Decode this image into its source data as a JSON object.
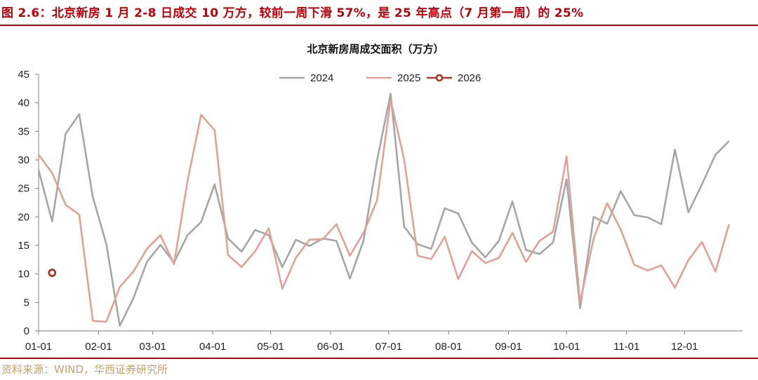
{
  "header": {
    "caption": "图 2.6：北京新房 1 月 2-8 日成交 10 万方，较前一周下滑 57%，是 25 年高点（7 月第一周）的 25%"
  },
  "footer": {
    "source": "资料来源：WIND，华西证券研究所"
  },
  "colors": {
    "accent": "#c0000b",
    "source_text": "#c8a16a",
    "series_2024": "#a6a6a6",
    "series_2025": "#e0a197",
    "series_2026": "#a8382a"
  },
  "chart_data": {
    "type": "line",
    "title": "北京新房周成交面积（万方）",
    "xlabel": "",
    "ylabel": "",
    "ylim": [
      0,
      45
    ],
    "yticks": [
      0,
      5,
      10,
      15,
      20,
      25,
      30,
      35,
      40,
      45
    ],
    "xlim": [
      1,
      53
    ],
    "xticks": [
      {
        "label": "01-01",
        "week": 1
      },
      {
        "label": "02-01",
        "week": 5.43
      },
      {
        "label": "03-01",
        "week": 9.43
      },
      {
        "label": "04-01",
        "week": 13.86
      },
      {
        "label": "05-01",
        "week": 18.14
      },
      {
        "label": "06-01",
        "week": 22.57
      },
      {
        "label": "07-01",
        "week": 26.86
      },
      {
        "label": "08-01",
        "week": 31.29
      },
      {
        "label": "09-01",
        "week": 35.71
      },
      {
        "label": "10-01",
        "week": 40
      },
      {
        "label": "11-01",
        "week": 44.43
      },
      {
        "label": "12-01",
        "week": 48.71
      }
    ],
    "grid": false,
    "legend_position": "top-center",
    "series": [
      {
        "name": "2024",
        "x": [
          1,
          2,
          3,
          4,
          5,
          6,
          7,
          8,
          9,
          10,
          11,
          12,
          13,
          14,
          15,
          16,
          17,
          18,
          19,
          20,
          21,
          22,
          23,
          24,
          25,
          26,
          27,
          28,
          29,
          30,
          31,
          32,
          33,
          34,
          35,
          36,
          37,
          38,
          39,
          40,
          41,
          42,
          43,
          44,
          45,
          46,
          47,
          48,
          49,
          50,
          51,
          52
        ],
        "values": [
          28.2,
          19.2,
          34.6,
          38.0,
          23.5,
          15.3,
          0.9,
          5.7,
          12.1,
          15.1,
          12.0,
          16.8,
          19.1,
          25.7,
          16.2,
          13.9,
          17.7,
          16.8,
          11.2,
          16.0,
          14.9,
          16.2,
          15.8,
          9.2,
          15.8,
          29.9,
          41.6,
          18.3,
          15.2,
          14.4,
          21.5,
          20.6,
          15.5,
          12.9,
          15.8,
          22.7,
          14.2,
          13.5,
          15.5,
          26.6,
          4.0,
          20.0,
          18.8,
          24.5,
          20.3,
          19.9,
          18.7,
          31.8,
          20.8,
          25.7,
          30.9,
          33.3
        ]
      },
      {
        "name": "2025",
        "x": [
          1,
          2,
          3,
          4,
          5,
          6,
          7,
          8,
          9,
          10,
          11,
          12,
          13,
          14,
          15,
          16,
          17,
          18,
          19,
          20,
          21,
          22,
          23,
          24,
          25,
          26,
          27,
          28,
          29,
          30,
          31,
          32,
          33,
          34,
          35,
          36,
          37,
          38,
          39,
          40,
          41,
          42,
          43,
          44,
          45,
          46,
          47,
          48,
          49,
          50,
          51,
          52
        ],
        "values": [
          30.9,
          27.7,
          22.1,
          20.4,
          1.8,
          1.6,
          7.7,
          10.4,
          14.4,
          16.8,
          11.7,
          26.3,
          37.9,
          35.2,
          13.3,
          11.2,
          14.0,
          18.0,
          7.4,
          12.8,
          16.0,
          16.1,
          18.7,
          13.2,
          17.2,
          22.9,
          40.5,
          30.1,
          13.2,
          12.6,
          16.5,
          9.1,
          14.0,
          11.9,
          12.8,
          17.2,
          12.1,
          15.8,
          17.4,
          30.6,
          5.0,
          16.2,
          22.4,
          17.8,
          11.6,
          10.6,
          11.5,
          7.6,
          12.4,
          15.6,
          10.4,
          18.7
        ]
      },
      {
        "name": "2026",
        "x": [
          2
        ],
        "values": [
          10.2
        ],
        "marker": "circle"
      }
    ]
  }
}
